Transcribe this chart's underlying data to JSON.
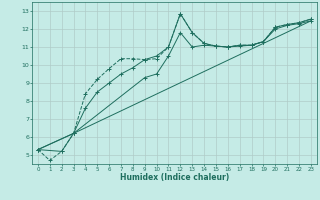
{
  "xlabel": "Humidex (Indice chaleur)",
  "xlim": [
    -0.5,
    23.5
  ],
  "ylim": [
    4.5,
    13.5
  ],
  "yticks": [
    5,
    6,
    7,
    8,
    9,
    10,
    11,
    12,
    13
  ],
  "xticks": [
    0,
    1,
    2,
    3,
    4,
    5,
    6,
    7,
    8,
    9,
    10,
    11,
    12,
    13,
    14,
    15,
    16,
    17,
    18,
    19,
    20,
    21,
    22,
    23
  ],
  "bg_color": "#c5ebe6",
  "grid_color": "#b0ccc8",
  "line_color": "#1e6e5e",
  "line1_x": [
    0,
    1,
    2,
    3,
    4,
    5,
    6,
    7,
    8,
    9,
    10,
    11,
    12,
    13,
    14,
    15,
    16,
    17,
    18,
    19,
    20,
    21,
    22,
    23
  ],
  "line1_y": [
    5.3,
    4.7,
    5.2,
    6.2,
    8.4,
    9.2,
    9.8,
    10.35,
    10.35,
    10.3,
    10.35,
    11.0,
    12.85,
    11.8,
    11.2,
    11.05,
    11.0,
    11.1,
    11.1,
    11.3,
    12.1,
    12.25,
    12.35,
    12.55
  ],
  "line2_x": [
    0,
    2,
    3,
    4,
    5,
    6,
    7,
    8,
    9,
    10,
    11,
    12,
    13,
    14,
    15,
    16,
    17,
    18,
    19,
    20,
    21,
    22,
    23
  ],
  "line2_y": [
    5.3,
    5.2,
    6.2,
    7.6,
    8.5,
    9.0,
    9.5,
    9.85,
    10.3,
    10.5,
    11.0,
    12.85,
    11.8,
    11.2,
    11.05,
    11.0,
    11.1,
    11.1,
    11.3,
    12.1,
    12.25,
    12.35,
    12.55
  ],
  "line3_x": [
    0,
    3,
    9,
    10,
    11,
    12,
    13,
    14,
    15,
    16,
    17,
    18,
    19,
    20,
    21,
    22,
    23
  ],
  "line3_y": [
    5.3,
    6.2,
    9.3,
    9.5,
    10.5,
    11.8,
    11.0,
    11.1,
    11.05,
    11.0,
    11.05,
    11.1,
    11.3,
    12.0,
    12.2,
    12.3,
    12.45
  ],
  "line4_x": [
    0,
    3,
    23
  ],
  "line4_y": [
    5.3,
    6.2,
    12.45
  ]
}
